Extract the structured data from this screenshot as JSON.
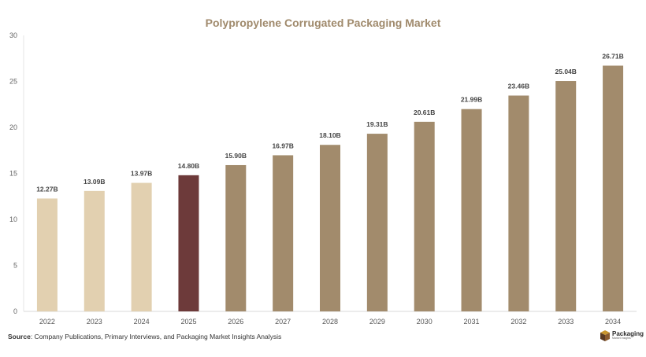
{
  "chart_data": {
    "type": "bar",
    "title": "Polypropylene Corrugated Packaging Market",
    "categories": [
      "2022",
      "2023",
      "2024",
      "2025",
      "2026",
      "2027",
      "2028",
      "2029",
      "2030",
      "2031",
      "2032",
      "2033",
      "2034"
    ],
    "values": [
      12.27,
      13.09,
      13.97,
      14.8,
      15.9,
      16.97,
      18.1,
      19.31,
      20.61,
      21.99,
      23.46,
      25.04,
      26.71
    ],
    "data_labels": [
      "12.27B",
      "13.09B",
      "13.97B",
      "14.80B",
      "15.90B",
      "16.97B",
      "18.10B",
      "19.31B",
      "20.61B",
      "21.99B",
      "23.46B",
      "25.04B",
      "26.71B"
    ],
    "bar_colors": [
      "#e2d0b0",
      "#e2d0b0",
      "#e2d0b0",
      "#6d3a3a",
      "#a28b6c",
      "#a28b6c",
      "#a28b6c",
      "#a28b6c",
      "#a28b6c",
      "#a28b6c",
      "#a28b6c",
      "#a28b6c",
      "#a28b6c"
    ],
    "yticks": [
      0,
      5,
      10,
      15,
      20,
      25,
      30
    ],
    "ylim": [
      0,
      30
    ],
    "xlabel": "",
    "ylabel": "",
    "grid": false,
    "legend": "none"
  },
  "footer": {
    "source_label": "Source",
    "source_text": ": Company Publications, Primary Interviews, and Packaging Market Insights Analysis"
  },
  "logo": {
    "name": "Packaging",
    "tagline": "Market Insights",
    "icon": "box-icon",
    "colors": {
      "dark": "#5a3a22",
      "light": "#c9962e"
    }
  }
}
